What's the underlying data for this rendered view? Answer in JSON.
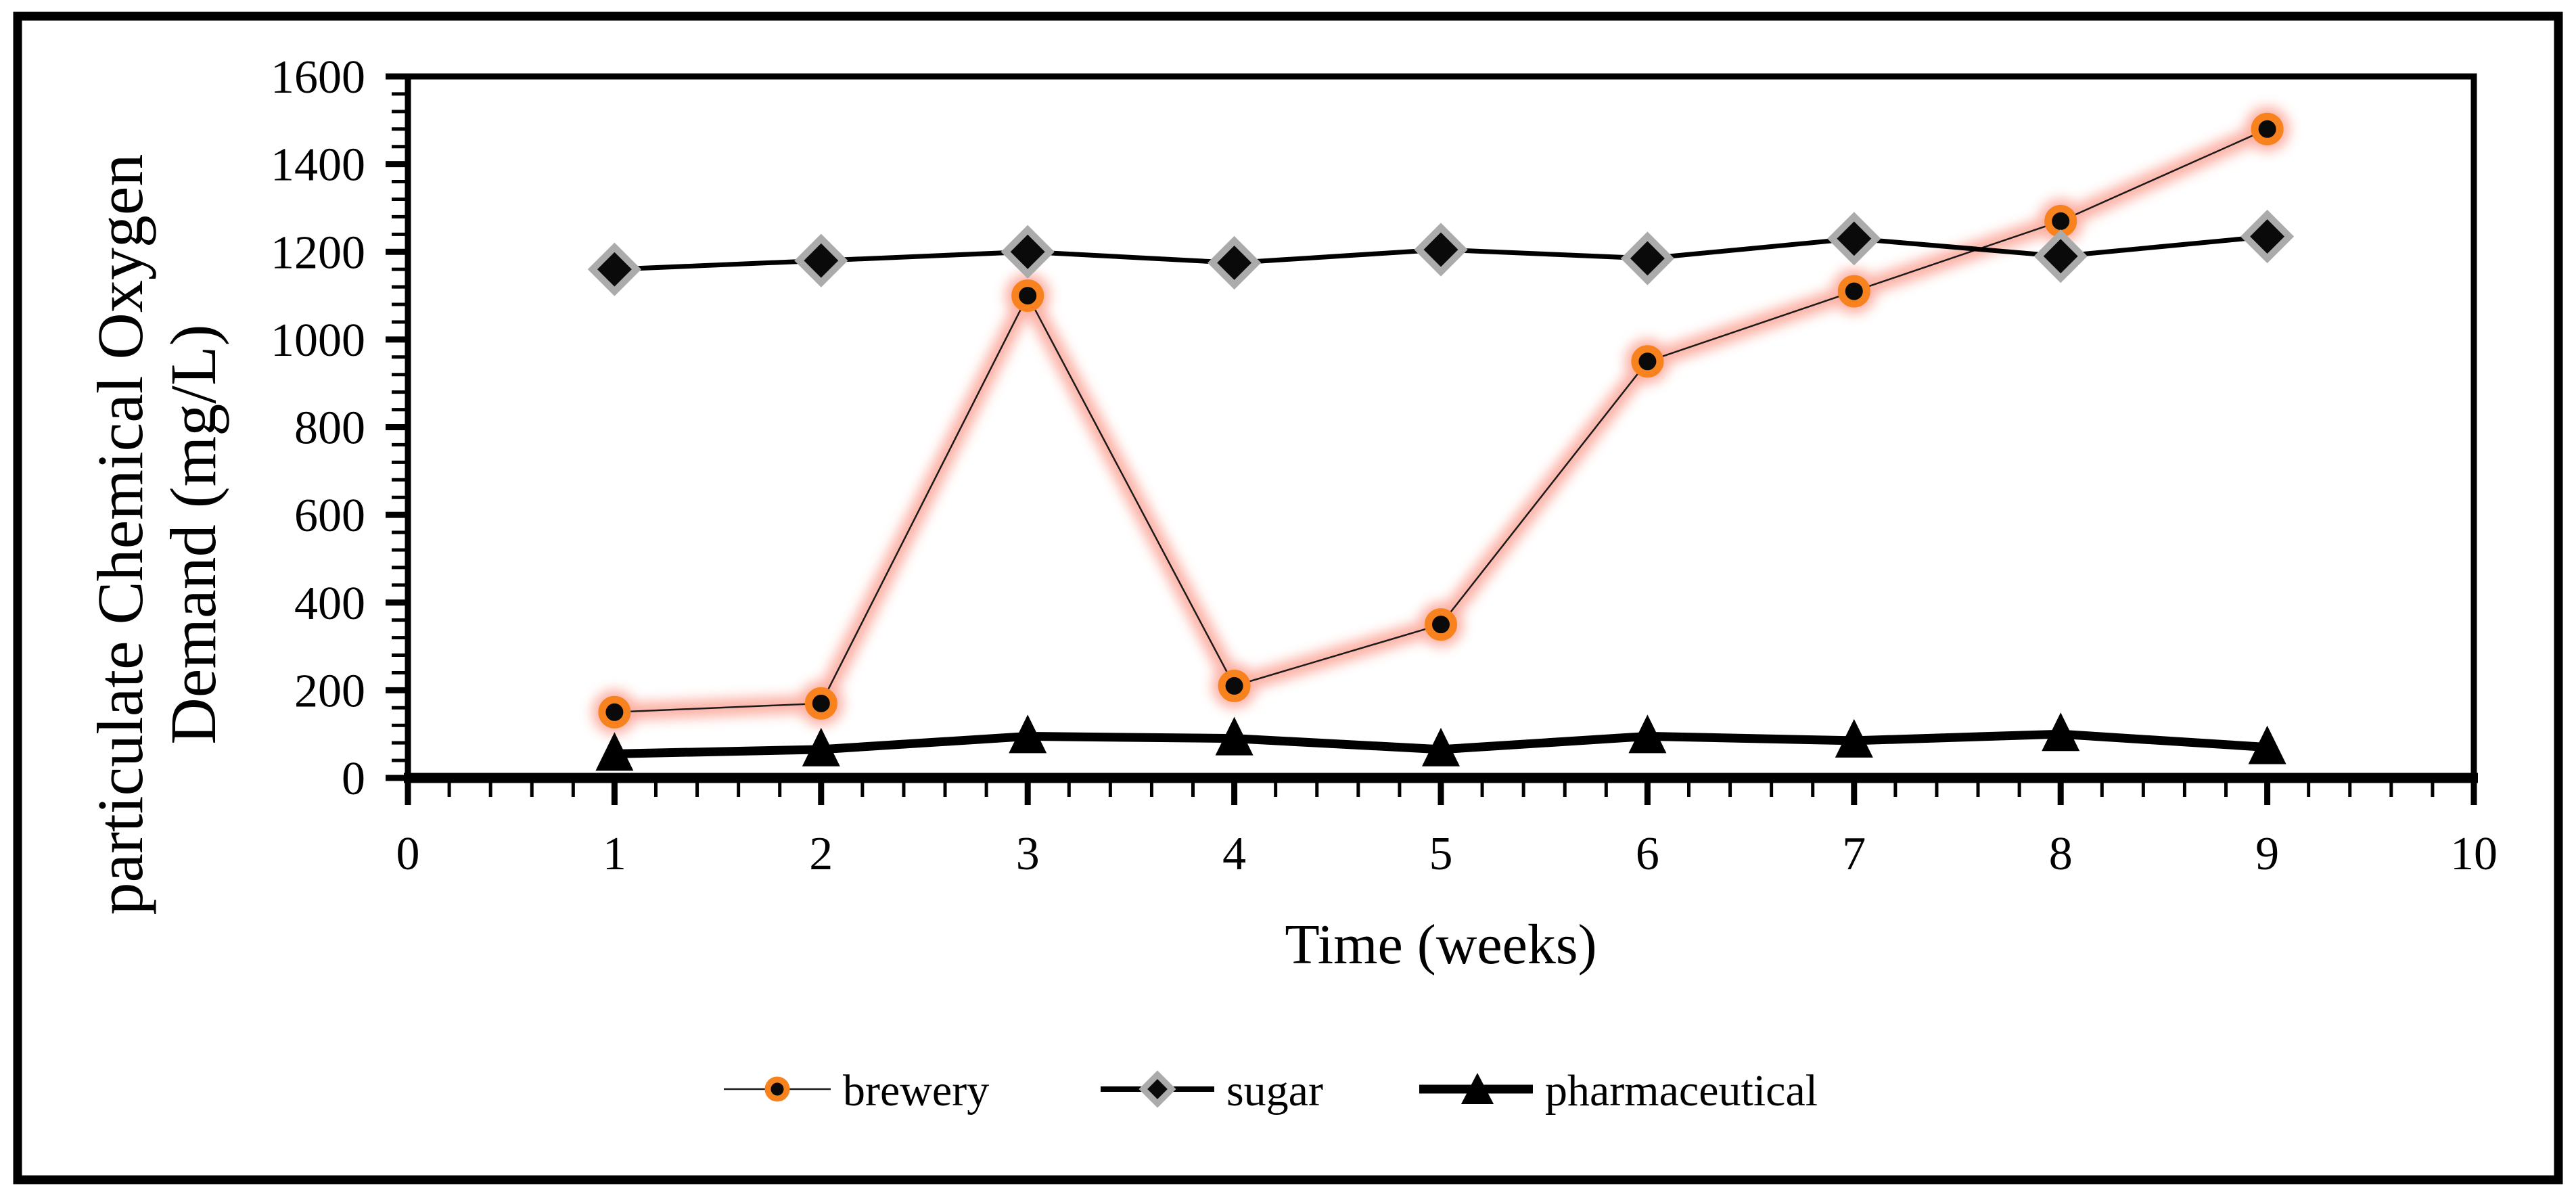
{
  "figure": {
    "y_axis_title_line1": "particulate Chemical Oxygen",
    "y_axis_title_line2": "Demand (mg/L)",
    "x_axis_title": "Time (weeks)"
  },
  "colors": {
    "line_black": "#000000",
    "brewery_marker_ring": "#f8821e",
    "brewery_glow": "#fa7a66",
    "sugar_marker_border": "#ababab",
    "marker_fill": "#0a0a0a",
    "border": "#000000",
    "background": "#ffffff"
  },
  "chart_data": {
    "type": "line",
    "title": "",
    "xlabel": "Time (weeks)",
    "ylabel": "particulate Chemical Oxygen Demand (mg/L)",
    "x": [
      1,
      2,
      3,
      4,
      5,
      6,
      7,
      8,
      9
    ],
    "series": [
      {
        "name": "brewery",
        "values": [
          150,
          170,
          1100,
          210,
          350,
          950,
          1110,
          1270,
          1480
        ],
        "marker": "circle",
        "marker_fill": "#0a0a0a",
        "marker_ring": "#f8821e",
        "glow_color": "#fa7a66",
        "line_color": "#1a1a1a",
        "line_width": 2.5
      },
      {
        "name": "sugar",
        "values": [
          1160,
          1180,
          1200,
          1175,
          1205,
          1185,
          1230,
          1190,
          1235
        ],
        "marker": "diamond",
        "marker_fill": "#0a0a0a",
        "marker_border": "#ababab",
        "line_color": "#000000",
        "line_width": 7
      },
      {
        "name": "pharmaceutical",
        "values": [
          55,
          65,
          95,
          90,
          65,
          95,
          85,
          100,
          70
        ],
        "marker": "triangle",
        "marker_fill": "#000000",
        "line_color": "#000000",
        "line_width": 13
      }
    ],
    "xlim": [
      0,
      10
    ],
    "ylim": [
      0,
      1600
    ],
    "x_tick_labels": [
      "0",
      "1",
      "2",
      "3",
      "4",
      "5",
      "6",
      "7",
      "8",
      "9",
      "10"
    ],
    "y_tick_labels": [
      "0",
      "200",
      "400",
      "600",
      "800",
      "1000",
      "1200",
      "1400",
      "1600"
    ],
    "x_major_step": 1,
    "x_minor_step": 0.2,
    "y_major_step": 200,
    "y_minor_step": 40,
    "grid": false,
    "legend_position": "bottom"
  }
}
